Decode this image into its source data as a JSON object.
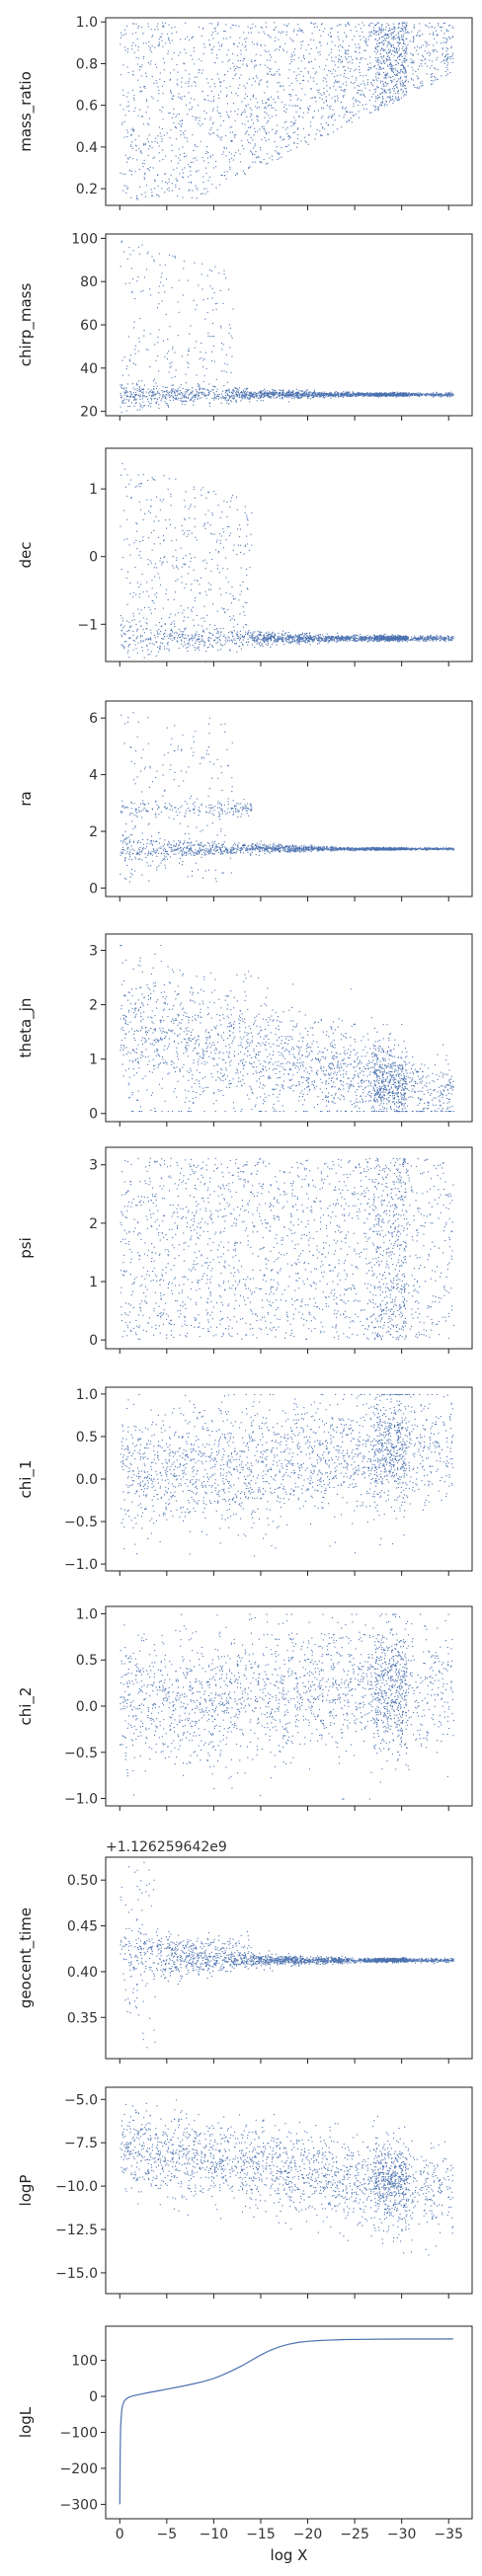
{
  "chart_data": [
    {
      "type": "scatter",
      "ylabel": "mass_ratio",
      "ylim": [
        0.12,
        1.02
      ],
      "yticks": [
        0.2,
        0.4,
        0.6,
        0.8,
        1.0
      ],
      "ytick_labels": [
        "0.2",
        "0.4",
        "0.6",
        "0.8",
        "1.0"
      ]
    },
    {
      "type": "scatter",
      "ylabel": "chirp_mass",
      "ylim": [
        18,
        102
      ],
      "yticks": [
        20,
        40,
        60,
        80,
        100
      ],
      "ytick_labels": [
        "20",
        "40",
        "60",
        "80",
        "100"
      ]
    },
    {
      "type": "scatter",
      "ylabel": "dec",
      "ylim": [
        -1.55,
        1.6
      ],
      "yticks": [
        -1,
        0,
        1
      ],
      "ytick_labels": [
        "−1",
        "0",
        "1"
      ]
    },
    {
      "type": "scatter",
      "ylabel": "ra",
      "ylim": [
        -0.3,
        6.6
      ],
      "yticks": [
        0,
        2,
        4,
        6
      ],
      "ytick_labels": [
        "0",
        "2",
        "4",
        "6"
      ]
    },
    {
      "type": "scatter",
      "ylabel": "theta_jn",
      "ylim": [
        -0.15,
        3.3
      ],
      "yticks": [
        0,
        1,
        2,
        3
      ],
      "ytick_labels": [
        "0",
        "1",
        "2",
        "3"
      ]
    },
    {
      "type": "scatter",
      "ylabel": "psi",
      "ylim": [
        -0.15,
        3.3
      ],
      "yticks": [
        0,
        1,
        2,
        3
      ],
      "ytick_labels": [
        "0",
        "1",
        "2",
        "3"
      ]
    },
    {
      "type": "scatter",
      "ylabel": "chi_1",
      "ylim": [
        -1.08,
        1.08
      ],
      "yticks": [
        -1.0,
        -0.5,
        0.0,
        0.5,
        1.0
      ],
      "ytick_labels": [
        "−1.0",
        "−0.5",
        "0.0",
        "0.5",
        "1.0"
      ]
    },
    {
      "type": "scatter",
      "ylabel": "chi_2",
      "ylim": [
        -1.08,
        1.08
      ],
      "yticks": [
        -1.0,
        -0.5,
        0.0,
        0.5,
        1.0
      ],
      "ytick_labels": [
        "−1.0",
        "−0.5",
        "0.0",
        "0.5",
        "1.0"
      ]
    },
    {
      "type": "scatter",
      "ylabel": "geocent_time",
      "offset_text": "+1.126259642e9",
      "ylim": [
        0.305,
        0.525
      ],
      "yticks": [
        0.35,
        0.4,
        0.45,
        0.5
      ],
      "ytick_labels": [
        "0.35",
        "0.40",
        "0.45",
        "0.50"
      ]
    },
    {
      "type": "scatter",
      "ylabel": "logP",
      "ylim": [
        -16.2,
        -4.3
      ],
      "yticks": [
        -15.0,
        -12.5,
        -10.0,
        -7.5,
        -5.0
      ],
      "ytick_labels": [
        "−15.0",
        "−12.5",
        "−10.0",
        "−7.5",
        "−5.0"
      ]
    },
    {
      "type": "line",
      "ylabel": "logL",
      "xlabel": "log X",
      "ylim": [
        -340,
        195
      ],
      "yticks": [
        -300,
        -200,
        -100,
        0,
        100
      ],
      "ytick_labels": [
        "−300",
        "−200",
        "−100",
        "0",
        "100"
      ],
      "x": [
        0,
        0.05,
        0.1,
        0.2,
        0.3,
        0.5,
        0.8,
        1,
        1.5,
        2,
        3,
        4,
        5,
        6,
        7,
        8,
        9,
        10,
        11,
        12,
        13,
        14,
        15,
        16,
        17,
        18,
        19,
        20,
        21,
        22,
        23,
        24,
        26,
        28,
        30,
        32,
        34,
        35.5
      ],
      "y": [
        -300,
        -150,
        -80,
        -40,
        -25,
        -12,
        -5,
        -2,
        2,
        5,
        10,
        15,
        20,
        25,
        30,
        36,
        42,
        50,
        60,
        72,
        85,
        100,
        115,
        128,
        138,
        145,
        150,
        153,
        155,
        156,
        157,
        158,
        158.5,
        159,
        159.2,
        159.3,
        159.4,
        159.5
      ]
    }
  ],
  "shared_x": {
    "xlim": [
      1.5,
      -37.5
    ],
    "xticks": [
      0,
      -5,
      -10,
      -15,
      -20,
      -25,
      -30,
      -35
    ],
    "xtick_labels": [
      "0",
      "−5",
      "−10",
      "−15",
      "−20",
      "−25",
      "−30",
      "−35"
    ]
  },
  "colors": {
    "points": "#4c72b0",
    "axes": "#222222",
    "text": "#222222"
  }
}
